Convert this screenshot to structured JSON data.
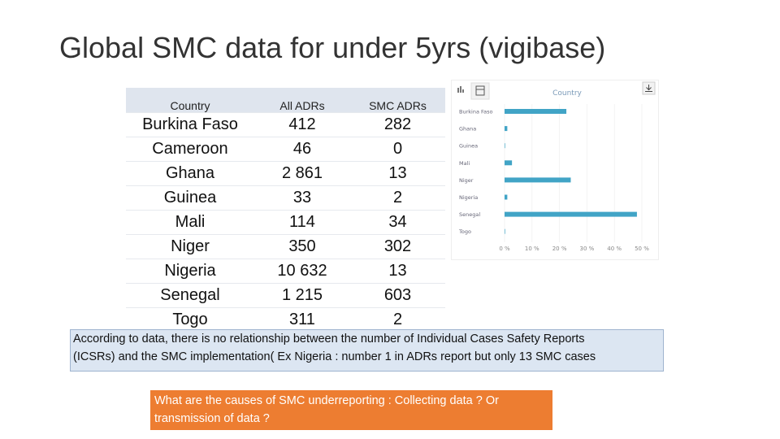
{
  "title": "Global SMC data for under 5yrs (vigibase)",
  "table": {
    "header": [
      "Country",
      "All ADRs",
      "SMC  ADRs"
    ],
    "rows": [
      [
        "Burkina Faso",
        "412",
        "282"
      ],
      [
        "Cameroon",
        "46",
        "0"
      ],
      [
        "Ghana",
        "2 861",
        "13"
      ],
      [
        "Guinea",
        "33",
        "2"
      ],
      [
        "Mali",
        "114",
        "34"
      ],
      [
        "Niger",
        "350",
        "302"
      ],
      [
        "Nigeria",
        "10 632",
        "13"
      ],
      [
        "Senegal",
        "1 215",
        "603"
      ],
      [
        "Togo",
        "311",
        "2"
      ]
    ]
  },
  "chart_data": {
    "type": "bar",
    "orientation": "horizontal",
    "title": "Country",
    "categories": [
      "Burkina Faso",
      "Ghana",
      "Guinea",
      "Mali",
      "Niger",
      "Nigeria",
      "Senegal",
      "Togo"
    ],
    "values": [
      22.5,
      1,
      0.2,
      2.7,
      24.1,
      1,
      48.2,
      0.2
    ],
    "color": "#41a4c6",
    "xlim": [
      0,
      50
    ],
    "xticks": [
      {
        "value": 0,
        "label": "0 %"
      },
      {
        "value": 10,
        "label": "10 %"
      },
      {
        "value": 20,
        "label": "20 %"
      },
      {
        "value": 30,
        "label": "30 %"
      },
      {
        "value": 40,
        "label": "40 %"
      },
      {
        "value": 50,
        "label": "50 %"
      }
    ]
  },
  "notes": [
    {
      "lines": [
        "According to data, there is no relationship between the number of Individual Cases Safety Reports",
        "(ICSRs)  and the SMC implementation( Ex Nigeria : number 1 in ADRs report but only 13 SMC cases"
      ]
    },
    {
      "lines": [
        "What are the causes of SMC underreporting :  Collecting data ? Or",
        "transmission of data ?"
      ]
    }
  ]
}
